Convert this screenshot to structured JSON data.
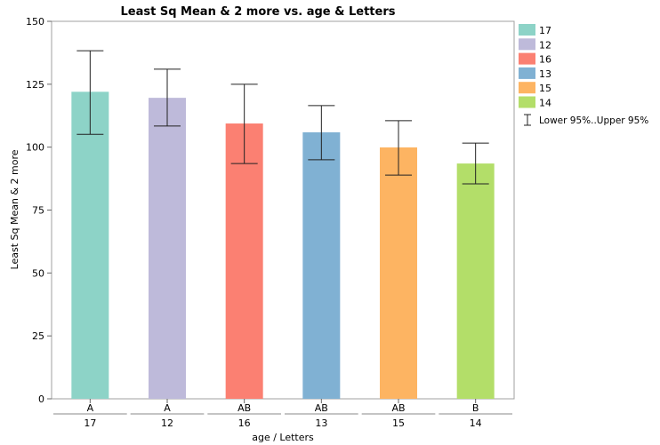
{
  "chart_data": {
    "type": "bar",
    "title": "Least Sq Mean & 2 more vs. age & Letters",
    "xlabel": "age / Letters",
    "ylabel": "Least Sq Mean & 2 more",
    "ylim": [
      0,
      150
    ],
    "yticks": [
      0,
      25,
      50,
      75,
      100,
      125,
      150
    ],
    "categories": [
      "17",
      "12",
      "16",
      "13",
      "15",
      "14"
    ],
    "letters": [
      "A",
      "A",
      "AB",
      "AB",
      "AB",
      "B"
    ],
    "values": [
      122,
      119.6,
      109.4,
      105.9,
      99.9,
      93.5
    ],
    "lower95": [
      105.1,
      108.4,
      93.5,
      95,
      88.9,
      85.4
    ],
    "upper95": [
      138.3,
      131,
      125,
      116.5,
      110.5,
      101.6
    ],
    "colors": [
      "#8dd3c7",
      "#bebada",
      "#fb8072",
      "#80b1d3",
      "#fdb462",
      "#b3de69"
    ],
    "legend": {
      "placement": "right",
      "items": [
        "17",
        "12",
        "16",
        "13",
        "15",
        "14"
      ],
      "errorbar_label": "Lower 95%..Upper 95%"
    },
    "grid": false
  }
}
